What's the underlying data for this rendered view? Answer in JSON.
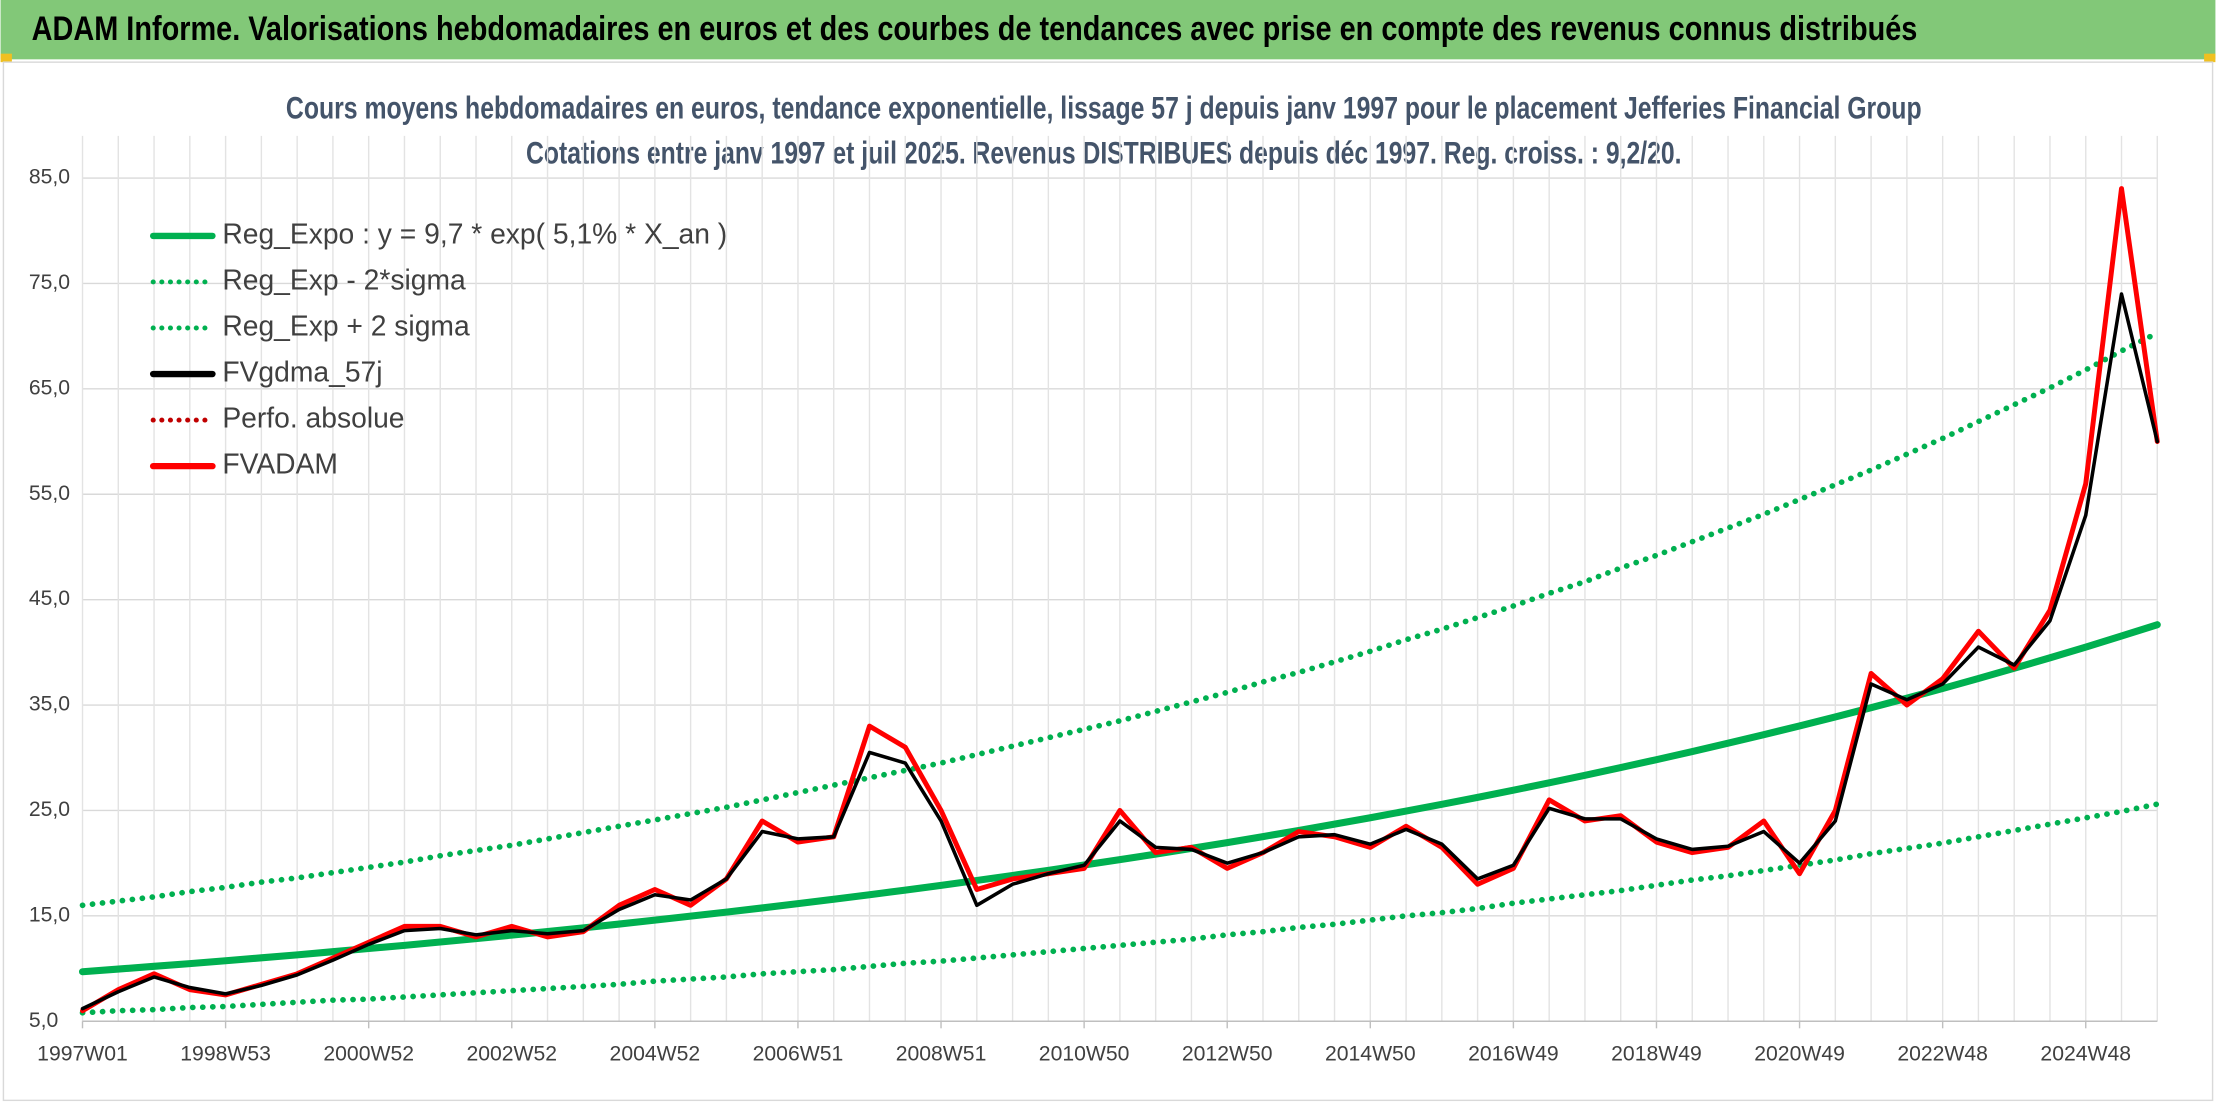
{
  "header": {
    "title": "ADAM Informe. Valorisations hebdomadaires en euros et des courbes de tendances avec prise en compte des revenus connus distribués"
  },
  "chart_data": {
    "type": "line",
    "title": "Cours moyens hebdomadaires en euros, tendance exponentielle, lissage 57 j depuis janv 1997 pour le placement Jefferies Financial Group",
    "subtitle": "Cotations entre janv 1997 et juil 2025. Revenus DISTRIBUES depuis déc 1997. Reg. croiss. : 9,2/20.",
    "categories": [
      "1997W01",
      null,
      null,
      null,
      "1998W53",
      null,
      null,
      null,
      "2000W52",
      null,
      null,
      null,
      "2002W52",
      null,
      null,
      null,
      "2004W52",
      null,
      null,
      null,
      "2006W51",
      null,
      null,
      null,
      "2008W51",
      null,
      null,
      null,
      "2010W50",
      null,
      null,
      null,
      "2012W50",
      null,
      null,
      null,
      "2014W50",
      null,
      null,
      null,
      "2016W49",
      null,
      null,
      null,
      "2018W49",
      null,
      null,
      null,
      "2020W49",
      null,
      null,
      null,
      "2022W48",
      null,
      null,
      null,
      "2024W48",
      null,
      null
    ],
    "ylim": [
      5,
      89
    ],
    "yticks": [
      {
        "value": 5,
        "label": "5,0"
      },
      {
        "value": 15,
        "label": "15,0"
      },
      {
        "value": 25,
        "label": "25,0"
      },
      {
        "value": 35,
        "label": "35,0"
      },
      {
        "value": 45,
        "label": "45,0"
      },
      {
        "value": 55,
        "label": "55,0"
      },
      {
        "value": 65,
        "label": "65,0"
      },
      {
        "value": 75,
        "label": "75,0"
      },
      {
        "value": 85,
        "label": "85,0"
      }
    ],
    "grid": true,
    "legend": "top-left",
    "series": [
      {
        "name": "Reg_Expo : y = 9,7 * exp( 5,1% *  X_an )",
        "color": "#00b050",
        "style": "solid",
        "values": [
          9.7,
          9.95,
          10.21,
          10.47,
          10.74,
          11.02,
          11.3,
          11.6,
          11.9,
          12.2,
          12.52,
          12.84,
          13.17,
          13.51,
          13.86,
          14.22,
          14.59,
          14.97,
          15.35,
          15.75,
          16.16,
          16.58,
          17.0,
          17.44,
          17.89,
          18.36,
          18.83,
          19.32,
          19.82,
          20.33,
          20.86,
          21.4,
          21.95,
          22.52,
          23.1,
          23.7,
          24.31,
          24.94,
          25.58,
          26.24,
          26.92,
          27.62,
          28.33,
          29.07,
          29.82,
          30.59,
          31.38,
          32.19,
          33.02,
          33.87,
          34.75,
          35.65,
          36.57,
          37.52,
          38.49,
          39.48,
          40.5,
          41.55,
          42.62
        ]
      },
      {
        "name": "Reg_Exp - 2*sigma",
        "color": "#00b050",
        "style": "dotted",
        "values": [
          5.8,
          6.0,
          6.1,
          6.3,
          6.4,
          6.6,
          6.8,
          7.0,
          7.1,
          7.3,
          7.5,
          7.7,
          7.9,
          8.1,
          8.3,
          8.5,
          8.8,
          9.0,
          9.2,
          9.5,
          9.7,
          9.9,
          10.2,
          10.5,
          10.7,
          11.0,
          11.3,
          11.6,
          11.9,
          12.2,
          12.5,
          12.8,
          13.2,
          13.5,
          13.9,
          14.2,
          14.6,
          15.0,
          15.3,
          15.7,
          16.2,
          16.6,
          17.0,
          17.4,
          17.9,
          18.4,
          18.8,
          19.3,
          19.8,
          20.3,
          20.9,
          21.4,
          21.9,
          22.5,
          23.1,
          23.7,
          24.3,
          24.9,
          25.6
        ]
      },
      {
        "name": "Reg_Exp + 2 sigma",
        "color": "#00b050",
        "style": "dotted",
        "values": [
          16.0,
          16.4,
          16.8,
          17.3,
          17.7,
          18.2,
          18.6,
          19.1,
          19.6,
          20.1,
          20.7,
          21.2,
          21.7,
          22.3,
          22.9,
          23.5,
          24.1,
          24.7,
          25.3,
          26.0,
          26.7,
          27.4,
          28.1,
          28.8,
          29.5,
          30.3,
          31.1,
          31.9,
          32.7,
          33.5,
          34.4,
          35.3,
          36.2,
          37.2,
          38.1,
          39.1,
          40.1,
          41.2,
          42.2,
          43.3,
          44.4,
          45.6,
          46.7,
          48.0,
          49.2,
          50.5,
          51.8,
          53.1,
          54.5,
          55.9,
          57.3,
          58.8,
          60.3,
          61.9,
          63.5,
          65.1,
          66.8,
          68.6,
          70.3
        ]
      },
      {
        "name": "FVgdma_57j",
        "color": "#000000",
        "style": "solid",
        "values": [
          6.2,
          7.8,
          9.2,
          8.2,
          7.6,
          8.4,
          9.4,
          10.8,
          12.3,
          13.6,
          13.8,
          13.2,
          13.6,
          13.3,
          13.6,
          15.6,
          17,
          16.5,
          18.5,
          23,
          22.3,
          22.5,
          30.5,
          29.5,
          24,
          16,
          18,
          19,
          19.8,
          24,
          21.5,
          21.3,
          20,
          21,
          22.5,
          22.7,
          21.8,
          23.2,
          21.8,
          18.5,
          19.8,
          25.2,
          24.2,
          24.2,
          22.3,
          21.3,
          21.6,
          23,
          20,
          24,
          37,
          35.5,
          37,
          40.5,
          38.8,
          43,
          53,
          74,
          60
        ]
      },
      {
        "name": "Perfo. absolue",
        "color": "#c00000",
        "style": "dotted"
      },
      {
        "name": "FVADAM",
        "color": "#ff0000",
        "style": "solid",
        "values": [
          6,
          8,
          9.5,
          8,
          7.5,
          8.5,
          9.5,
          11,
          12.5,
          14,
          14,
          13,
          14,
          13,
          13.5,
          16,
          17.5,
          16,
          18.5,
          24,
          22,
          22.5,
          33,
          31,
          25,
          17.5,
          18.5,
          19,
          19.5,
          25,
          21,
          21.5,
          19.5,
          21,
          23,
          22.5,
          21.5,
          23.5,
          21.5,
          18,
          19.5,
          26,
          24,
          24.5,
          22,
          21,
          21.5,
          24,
          19,
          25,
          38,
          35,
          37.5,
          42,
          38.5,
          44,
          56,
          84,
          60
        ]
      }
    ]
  }
}
